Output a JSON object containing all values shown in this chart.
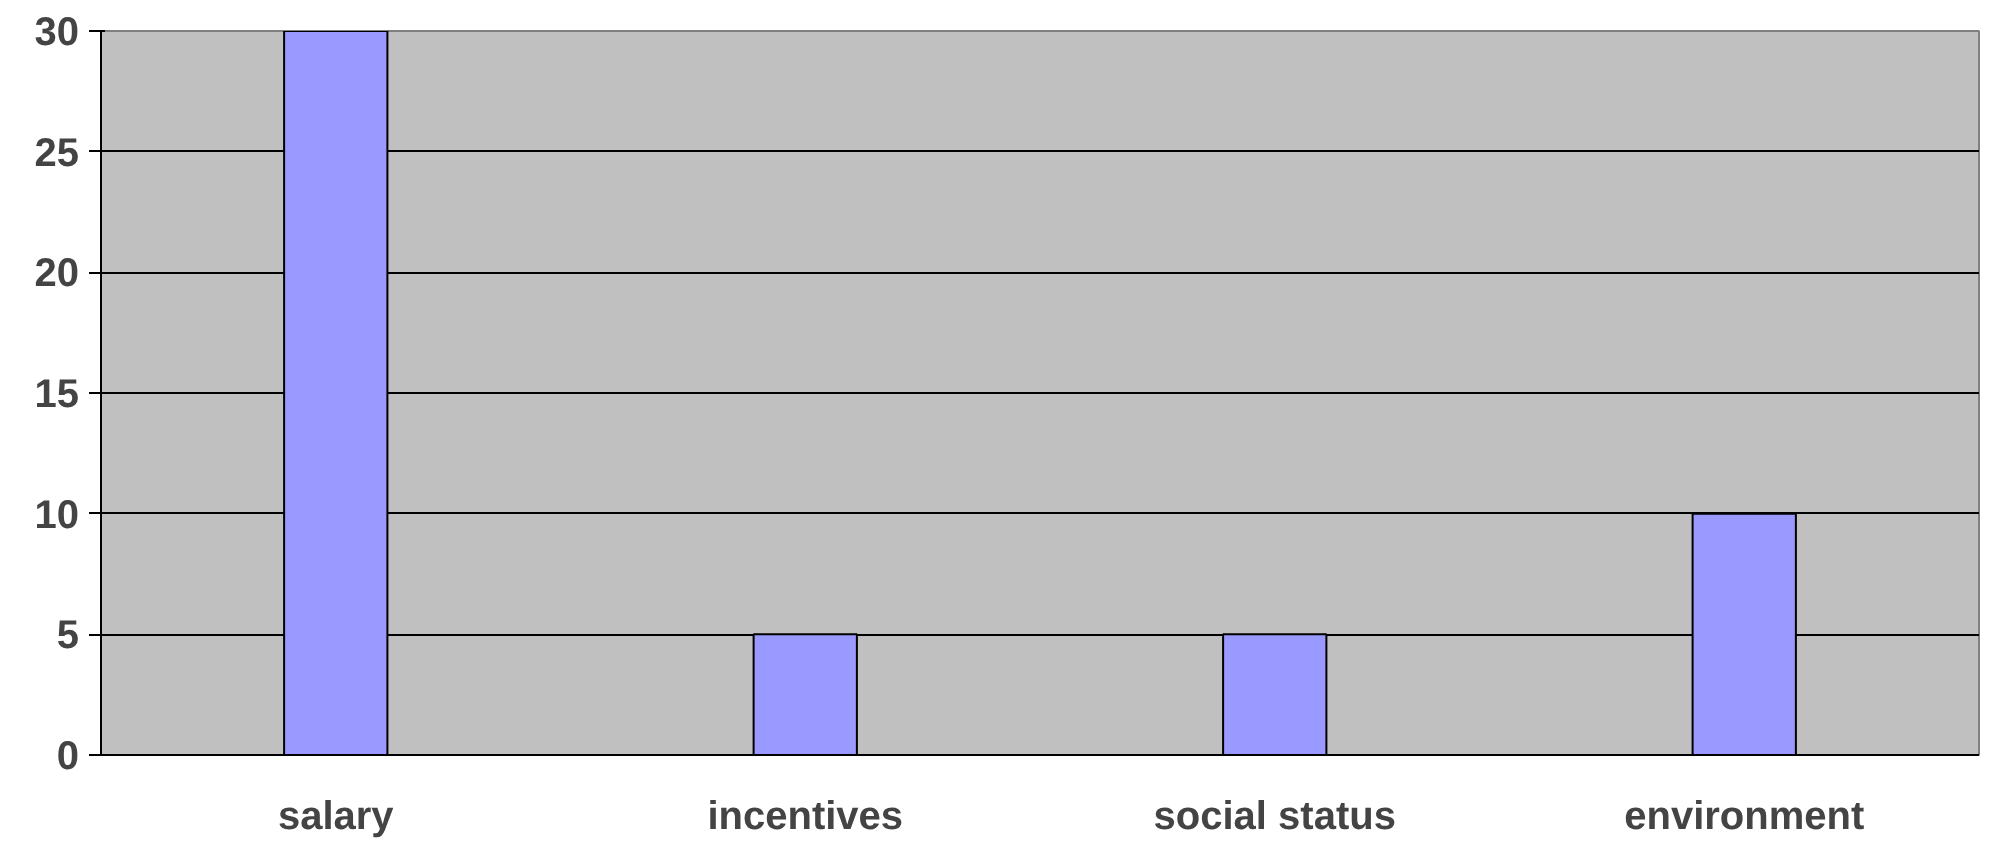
{
  "chart_data": {
    "type": "bar",
    "categories": [
      "salary",
      "incentives",
      "social status",
      "environment"
    ],
    "values": [
      30,
      5,
      5,
      10
    ],
    "color": "#9999ff",
    "ylim": [
      0,
      30
    ],
    "yticks": [
      0,
      5,
      10,
      15,
      20,
      25,
      30
    ],
    "grid": "y"
  }
}
